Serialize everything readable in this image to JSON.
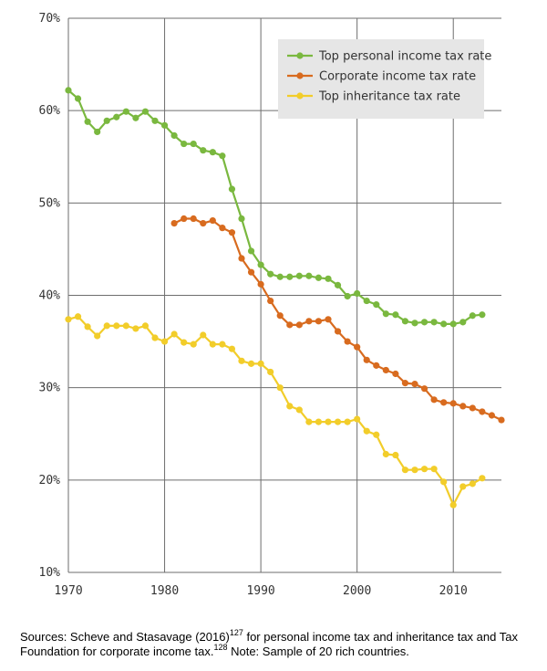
{
  "chart_data": {
    "type": "line",
    "title": "",
    "xlabel": "",
    "ylabel": "",
    "xlim": [
      1970,
      2015
    ],
    "ylim": [
      10,
      70
    ],
    "grid": true,
    "legend_position": "top-right",
    "x_ticks": [
      1970,
      1980,
      1990,
      2000,
      2010
    ],
    "y_ticks": [
      10,
      20,
      30,
      40,
      50,
      60,
      70
    ],
    "y_tick_labels": [
      "10%",
      "20%",
      "30%",
      "40%",
      "50%",
      "60%",
      "70%"
    ],
    "series": [
      {
        "name": "Top personal income tax rate",
        "color": "#7ab83f",
        "x": [
          1970,
          1971,
          1972,
          1973,
          1974,
          1975,
          1976,
          1977,
          1978,
          1979,
          1980,
          1981,
          1982,
          1983,
          1984,
          1985,
          1986,
          1987,
          1988,
          1989,
          1990,
          1991,
          1992,
          1993,
          1994,
          1995,
          1996,
          1997,
          1998,
          1999,
          2000,
          2001,
          2002,
          2003,
          2004,
          2005,
          2006,
          2007,
          2008,
          2009,
          2010,
          2011,
          2012,
          2013
        ],
        "y": [
          62.2,
          61.3,
          58.8,
          57.7,
          58.9,
          59.3,
          59.9,
          59.2,
          59.9,
          58.9,
          58.4,
          57.3,
          56.4,
          56.4,
          55.7,
          55.5,
          55.1,
          51.5,
          48.3,
          44.8,
          43.3,
          42.3,
          42.0,
          42.0,
          42.1,
          42.1,
          41.9,
          41.8,
          41.1,
          39.9,
          40.2,
          39.4,
          39.0,
          38.0,
          37.9,
          37.2,
          37.0,
          37.1,
          37.1,
          36.9,
          36.9,
          37.1,
          37.8,
          37.9
        ]
      },
      {
        "name": "Corporate income tax rate",
        "color": "#d86b1f",
        "x": [
          1981,
          1982,
          1983,
          1984,
          1985,
          1986,
          1987,
          1988,
          1989,
          1990,
          1991,
          1992,
          1993,
          1994,
          1995,
          1996,
          1997,
          1998,
          1999,
          2000,
          2001,
          2002,
          2003,
          2004,
          2005,
          2006,
          2007,
          2008,
          2009,
          2010,
          2011,
          2012,
          2013,
          2014,
          2015
        ],
        "y": [
          47.8,
          48.3,
          48.3,
          47.8,
          48.1,
          47.3,
          46.8,
          44.0,
          42.5,
          41.2,
          39.4,
          37.8,
          36.8,
          36.8,
          37.2,
          37.2,
          37.4,
          36.1,
          35.0,
          34.4,
          33.0,
          32.4,
          31.9,
          31.5,
          30.5,
          30.4,
          29.9,
          28.7,
          28.4,
          28.3,
          28.0,
          27.8,
          27.4,
          27.0,
          26.5
        ]
      },
      {
        "name": "Top inheritance tax rate",
        "color": "#f2cd2a",
        "x": [
          1970,
          1971,
          1972,
          1973,
          1974,
          1975,
          1976,
          1977,
          1978,
          1979,
          1980,
          1981,
          1982,
          1983,
          1984,
          1985,
          1986,
          1987,
          1988,
          1989,
          1990,
          1991,
          1992,
          1993,
          1994,
          1995,
          1996,
          1997,
          1998,
          1999,
          2000,
          2001,
          2002,
          2003,
          2004,
          2005,
          2006,
          2007,
          2008,
          2009,
          2010,
          2011,
          2012,
          2013
        ],
        "y": [
          37.4,
          37.7,
          36.6,
          35.6,
          36.7,
          36.7,
          36.7,
          36.4,
          36.7,
          35.4,
          35.0,
          35.8,
          34.9,
          34.7,
          35.7,
          34.7,
          34.7,
          34.2,
          32.9,
          32.6,
          32.6,
          31.7,
          30.0,
          28.0,
          27.6,
          26.3,
          26.3,
          26.3,
          26.3,
          26.3,
          26.6,
          25.3,
          24.9,
          22.8,
          22.7,
          21.1,
          21.1,
          21.2,
          21.2,
          19.8,
          17.3,
          19.3,
          19.6,
          20.2
        ]
      }
    ]
  },
  "caption": {
    "sources_text": "Sources: Scheve and Stasavage (2016)",
    "sup1": "127",
    "middle_text": " for personal income tax and inheritance tax and Tax Foundation for corporate income tax.",
    "sup2": "128",
    "note_text": " Note: Sample of 20 rich countries."
  }
}
